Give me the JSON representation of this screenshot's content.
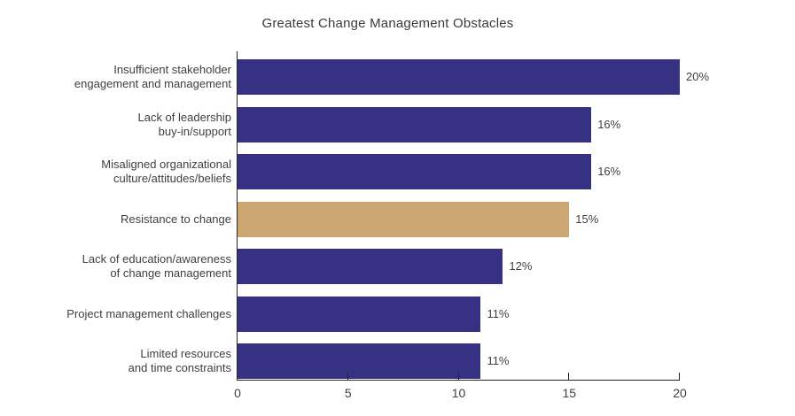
{
  "chart_data": {
    "type": "bar",
    "orientation": "horizontal",
    "title": "Greatest Change Management Obstacles",
    "categories": [
      {
        "lines": [
          "Insufficient stakeholder",
          "engagement and management"
        ]
      },
      {
        "lines": [
          "Lack of leadership",
          "buy-in/support"
        ]
      },
      {
        "lines": [
          "Misaligned organizational",
          "culture/attitudes/beliefs"
        ]
      },
      {
        "lines": [
          "Resistance to change"
        ]
      },
      {
        "lines": [
          "Lack of education/awareness",
          "of change management"
        ]
      },
      {
        "lines": [
          "Project management challenges"
        ]
      },
      {
        "lines": [
          "Limited resources",
          "and time constraints"
        ]
      }
    ],
    "values": [
      20,
      16,
      16,
      15,
      12,
      11,
      11
    ],
    "value_labels": [
      "20%",
      "16%",
      "16%",
      "15%",
      "12%",
      "11%",
      "11%"
    ],
    "highlight_index": 3,
    "colors": {
      "bar_primary": "#363183",
      "bar_highlight": "#CCA670",
      "axis": "#262626",
      "text": "#3f3f3f"
    },
    "xlabel": "",
    "ylabel": "",
    "xlim": [
      0,
      20
    ],
    "x_tick_values": [
      0,
      5,
      10,
      15,
      20
    ],
    "x_tick_labels": [
      "0",
      "5",
      "10",
      "15",
      "20"
    ],
    "grid": false,
    "legend": "none"
  }
}
